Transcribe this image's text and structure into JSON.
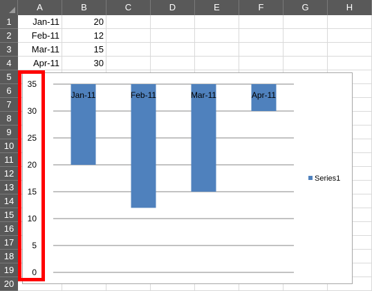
{
  "columns": [
    "A",
    "B",
    "C",
    "D",
    "E",
    "F",
    "G",
    "H"
  ],
  "rows": [
    "1",
    "2",
    "3",
    "4",
    "5",
    "6",
    "7",
    "8",
    "9",
    "10",
    "11",
    "12",
    "13",
    "14",
    "15",
    "16",
    "17",
    "18",
    "19",
    "20"
  ],
  "cells": [
    {
      "a": "Jan-11",
      "b": "20"
    },
    {
      "a": "Feb-11",
      "b": "12"
    },
    {
      "a": "Mar-11",
      "b": "15"
    },
    {
      "a": "Apr-11",
      "b": "30"
    }
  ],
  "chart_data": {
    "type": "bar",
    "categories": [
      "Jan-11",
      "Feb-11",
      "Mar-11",
      "Apr-11"
    ],
    "series": [
      {
        "name": "Series1",
        "values": [
          20,
          12,
          15,
          30
        ]
      }
    ],
    "y_ticks": [
      "35",
      "30",
      "25",
      "20",
      "15",
      "10",
      "5",
      "0"
    ],
    "ylim": [
      0,
      35
    ],
    "y_axis": "reversed",
    "grid": true,
    "legend": "right",
    "bar_color": "#4f81bd"
  },
  "highlight_color": "#ff0000"
}
